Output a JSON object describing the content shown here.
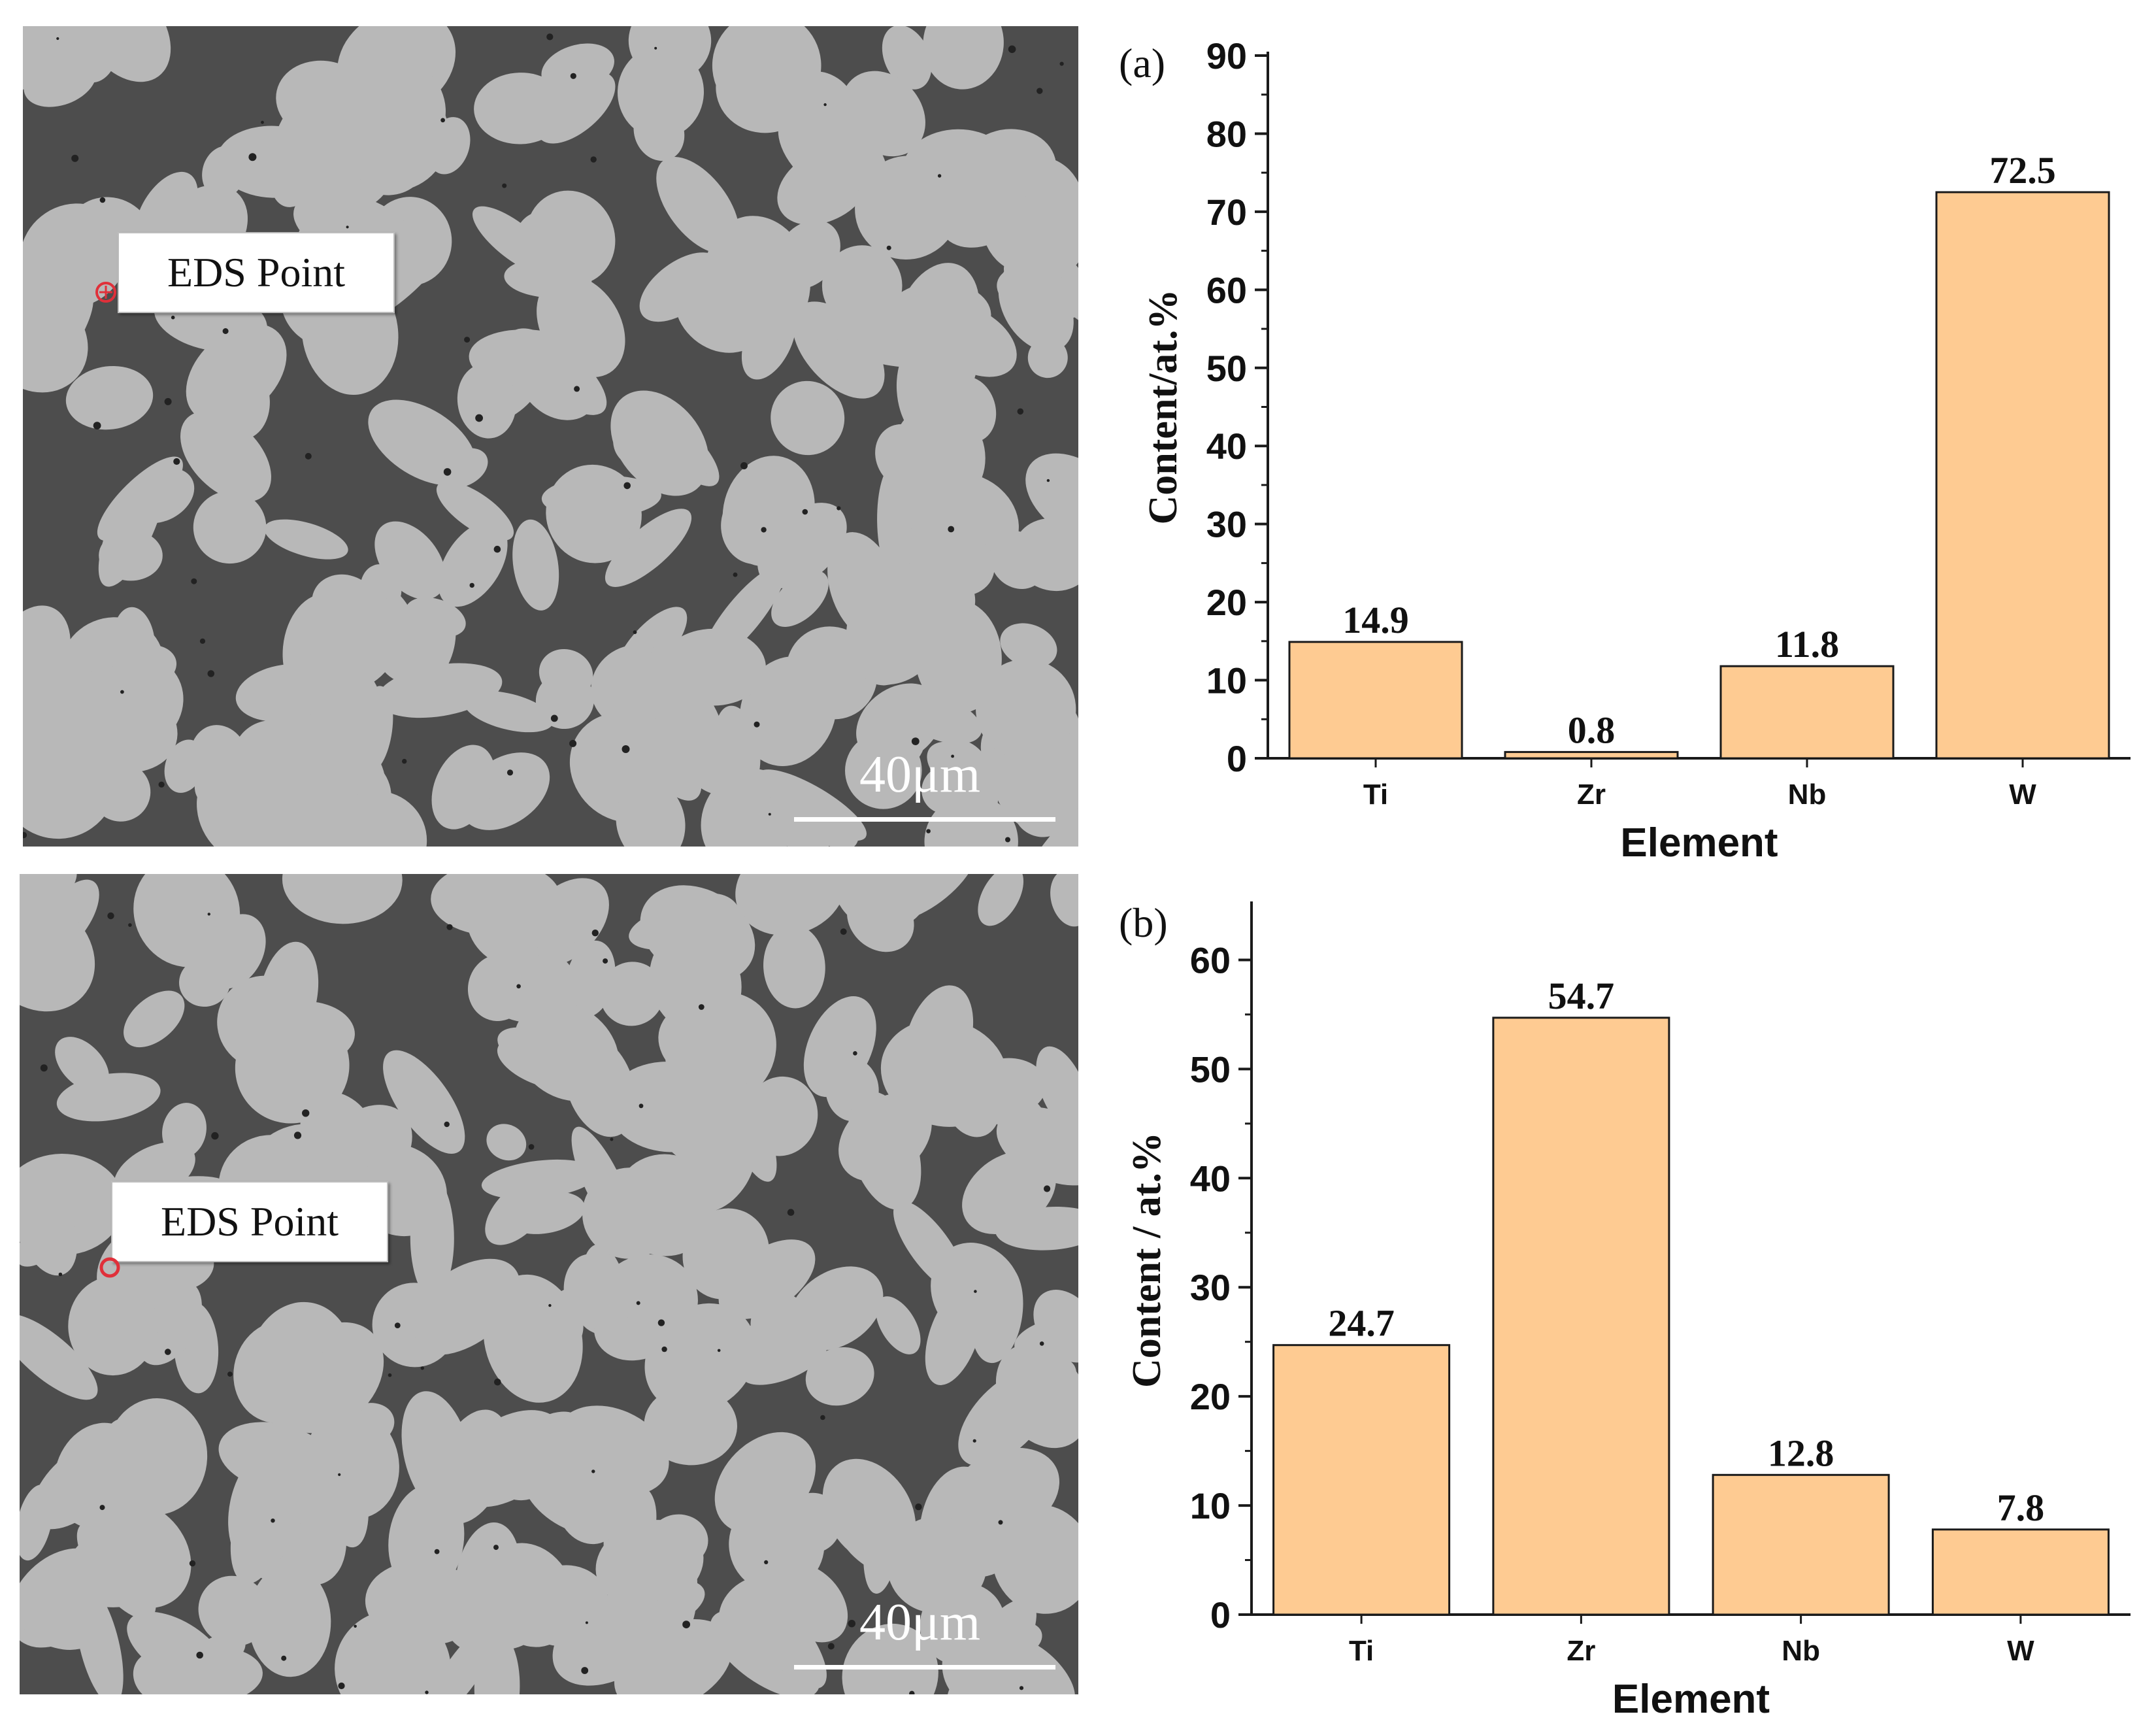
{
  "figure": {
    "panels": [
      {
        "eds_label": "EDS Point",
        "scale_label": "40μm"
      },
      {
        "eds_label": "EDS Point",
        "scale_label": "40μm"
      }
    ]
  },
  "colors": {
    "bar_fill": "#FECB92",
    "bar_stroke": "#1a1a1a",
    "micro_dark": "#4d4d4d",
    "micro_light": "#b8b8b8",
    "eds_marker": "#e0303a"
  },
  "chart_data": [
    {
      "type": "bar",
      "panel_label": "(a)",
      "categories": [
        "Ti",
        "Zr",
        "Nb",
        "W"
      ],
      "values": [
        14.9,
        0.8,
        11.8,
        72.5
      ],
      "value_labels": [
        "14.9",
        "0.8",
        "11.8",
        "72.5"
      ],
      "xlabel": "Element",
      "ylabel": "Content/at.%",
      "ylim": [
        0,
        90
      ],
      "yticks": [
        0,
        10,
        20,
        30,
        40,
        50,
        60,
        70,
        80,
        90
      ],
      "grid": false
    },
    {
      "type": "bar",
      "panel_label": "(b)",
      "categories": [
        "Ti",
        "Zr",
        "Nb",
        "W"
      ],
      "values": [
        24.7,
        54.7,
        12.8,
        7.8
      ],
      "value_labels": [
        "24.7",
        "54.7",
        "12.8",
        "7.8"
      ],
      "xlabel": "Element",
      "ylabel": "Content / at.%",
      "ylim": [
        0,
        65
      ],
      "yticks": [
        0,
        10,
        20,
        30,
        40,
        50,
        60
      ],
      "grid": false
    }
  ]
}
